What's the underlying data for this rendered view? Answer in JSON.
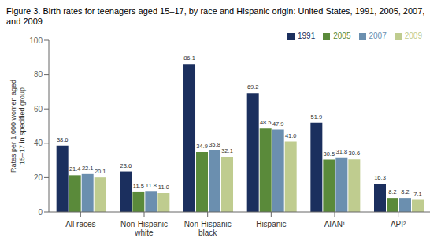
{
  "chart_data": {
    "type": "bar",
    "title": "Figure 3. Birth rates for teenagers aged 15–17, by race and Hispanic origin: United States, 1991, 2005, 2007, and 2009",
    "ylabel": "Rates per 1,000 women aged 15–17 in specified group",
    "categories": [
      "All races",
      "Non-Hispanic\nwhite",
      "Non-Hispanic\nblack",
      "Hispanic",
      "AIAN¹",
      "API²"
    ],
    "series": [
      {
        "name": "1991",
        "color": "#1b2f5e",
        "values": [
          38.6,
          23.6,
          86.1,
          69.2,
          51.9,
          16.3
        ],
        "value_labels": [
          "38.6",
          "23.6",
          "86.1",
          "69.2",
          "51.9",
          "16.3"
        ]
      },
      {
        "name": "2005",
        "color": "#5a8a3a",
        "values": [
          21.4,
          11.5,
          34.9,
          48.5,
          30.5,
          8.2
        ],
        "value_labels": [
          "21.4",
          "11.5",
          "34.9",
          "48.5",
          "30.5",
          "8.2"
        ]
      },
      {
        "name": "2007",
        "color": "#6b8faf",
        "values": [
          22.1,
          11.8,
          35.8,
          47.9,
          31.8,
          8.2
        ],
        "value_labels": [
          "22.1",
          "11.8",
          "35.8",
          "47.9",
          "31.8",
          "8.2"
        ]
      },
      {
        "name": "2009",
        "color": "#bfcc8f",
        "values": [
          20.1,
          11.0,
          32.1,
          41.0,
          30.6,
          7.1
        ],
        "value_labels": [
          "20.1",
          "11.0",
          "32.1",
          "41.0",
          "30.6",
          "7.1"
        ]
      }
    ],
    "ylim": [
      0,
      100
    ],
    "yticks": [
      0,
      20,
      40,
      60,
      80,
      100
    ],
    "grid": false,
    "legend": "upper right",
    "data_labels": true
  }
}
